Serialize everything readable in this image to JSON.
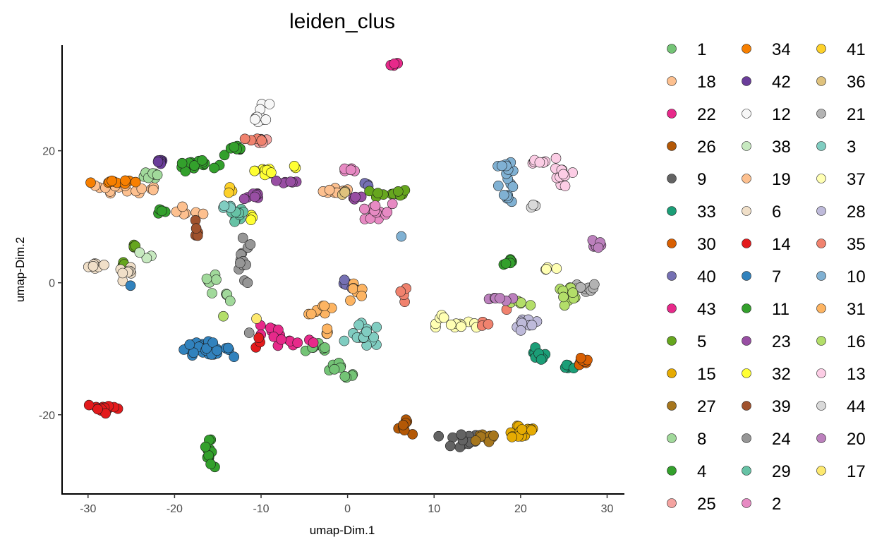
{
  "chart_data": {
    "type": "scatter",
    "title": "leiden_clus",
    "xlabel": "umap-Dim.1",
    "ylabel": "umap-Dim.2",
    "xlim": [
      -33,
      32
    ],
    "ylim": [
      -32,
      36
    ],
    "xticks": [
      -30,
      -20,
      -10,
      0,
      10,
      20,
      30
    ],
    "yticks": [
      -20,
      0,
      20
    ],
    "grid": false,
    "legend_position": "right",
    "legend_columns": 3,
    "point_stroke": "#1a1a1a",
    "clusters": [
      {
        "name": "1",
        "color": "#74c476",
        "blobs": [
          [
            -3,
            -10,
            1.5,
            1.0,
            8
          ],
          [
            -1.5,
            -12.5,
            1.3,
            0.9,
            6
          ],
          [
            0,
            -14.5,
            0.8,
            0.8,
            4
          ]
        ]
      },
      {
        "name": "18",
        "color": "#fdc08f",
        "blobs": [
          [
            -27,
            14.5,
            2.2,
            0.6,
            10
          ],
          [
            -23,
            14,
            1.5,
            0.5,
            6
          ],
          [
            -18,
            10.8,
            1.5,
            0.8,
            6
          ]
        ]
      },
      {
        "name": "22",
        "color": "#e7298a",
        "blobs": [
          [
            5.4,
            33,
            0.4,
            0.3,
            5
          ]
        ]
      },
      {
        "name": "26",
        "color": "#b35806",
        "blobs": [
          [
            7,
            -21.5,
            1.2,
            1.2,
            8
          ]
        ]
      },
      {
        "name": "9",
        "color": "#636363",
        "blobs": [
          [
            13,
            -24,
            2.0,
            1.0,
            14
          ]
        ]
      },
      {
        "name": "33",
        "color": "#1b9e77",
        "blobs": [
          [
            22,
            -11,
            0.8,
            0.8,
            8
          ],
          [
            25.5,
            -12.8,
            0.5,
            0.4,
            5
          ]
        ]
      },
      {
        "name": "30",
        "color": "#d95f02",
        "blobs": [
          [
            27,
            -12,
            0.8,
            0.6,
            10
          ]
        ]
      },
      {
        "name": "40",
        "color": "#7570b3",
        "blobs": [
          [
            0,
            -0.5,
            0.8,
            0.8,
            5
          ],
          [
            2.5,
            15,
            0.5,
            0.5,
            3
          ]
        ]
      },
      {
        "name": "43",
        "color": "#e7298a",
        "blobs": [
          [
            -9,
            -7.5,
            1.5,
            0.8,
            8
          ],
          [
            -6,
            -9,
            1.8,
            0.6,
            8
          ]
        ]
      },
      {
        "name": "5",
        "color": "#66a61e",
        "blobs": [
          [
            5,
            13.5,
            1.8,
            0.6,
            14
          ],
          [
            -24.8,
            5.8,
            0.4,
            0.6,
            4
          ],
          [
            -26,
            3,
            0.4,
            0.3,
            3
          ]
        ]
      },
      {
        "name": "15",
        "color": "#e6ab02",
        "blobs": [
          [
            20,
            -22.5,
            1.8,
            1.2,
            14
          ]
        ]
      },
      {
        "name": "27",
        "color": "#a6761d",
        "blobs": [
          [
            16.5,
            -23.5,
            2.0,
            0.8,
            10
          ]
        ]
      },
      {
        "name": "8",
        "color": "#a1d99b",
        "blobs": [
          [
            -22.5,
            16.5,
            0.8,
            0.8,
            8
          ],
          [
            -16,
            0.5,
            0.8,
            0.8,
            6
          ],
          [
            -14,
            -2,
            0.8,
            0.6,
            5
          ]
        ]
      },
      {
        "name": "4",
        "color": "#33a02c",
        "blobs": [
          [
            -17.5,
            18,
            2.0,
            0.8,
            16
          ],
          [
            -16,
            -26,
            0.4,
            1.6,
            12
          ],
          [
            -21.5,
            11,
            0.4,
            1.0,
            5
          ]
        ]
      },
      {
        "name": "25",
        "color": "#f4a3a0",
        "blobs": [
          [
            -10,
            21.5,
            1.0,
            0.5,
            5
          ]
        ]
      },
      {
        "name": "34",
        "color": "#f77f00",
        "blobs": [
          [
            -27.5,
            15.3,
            1.8,
            0.3,
            10
          ]
        ]
      },
      {
        "name": "42",
        "color": "#6a3d9a",
        "blobs": [
          [
            -21.5,
            18.3,
            0.8,
            0.5,
            6
          ]
        ]
      },
      {
        "name": "12",
        "color": "#f7f7f7",
        "blobs": [
          [
            -10,
            25.5,
            0.8,
            1.5,
            10
          ]
        ]
      },
      {
        "name": "38",
        "color": "#c7e9c0",
        "blobs": [
          [
            -23,
            4.5,
            0.6,
            0.6,
            3
          ]
        ]
      },
      {
        "name": "19",
        "color": "#fdc08f",
        "blobs": [
          [
            -1.5,
            14,
            1.5,
            0.6,
            8
          ]
        ]
      },
      {
        "name": "6",
        "color": "#f0dfc8",
        "blobs": [
          [
            -29,
            2.5,
            0.8,
            0.4,
            8
          ],
          [
            -25.5,
            1.5,
            0.8,
            0.6,
            8
          ]
        ]
      },
      {
        "name": "14",
        "color": "#e31a1c",
        "blobs": [
          [
            -28,
            -19,
            1.8,
            0.6,
            16
          ],
          [
            -10.5,
            -9,
            0.4,
            0.5,
            3
          ]
        ]
      },
      {
        "name": "7",
        "color": "#3182bd",
        "blobs": [
          [
            -16.5,
            -10,
            2.5,
            0.8,
            30
          ],
          [
            -25,
            -0.5,
            0.2,
            0.2,
            1
          ]
        ]
      },
      {
        "name": "11",
        "color": "#33a02c",
        "blobs": [
          [
            -13,
            20,
            1.5,
            0.6,
            8
          ],
          [
            19,
            3.2,
            0.8,
            0.4,
            6
          ]
        ]
      },
      {
        "name": "23",
        "color": "#984ea3",
        "blobs": [
          [
            -11,
            13,
            1.0,
            0.8,
            8
          ],
          [
            -7,
            15.3,
            1.5,
            0.3,
            6
          ],
          [
            1,
            13,
            0.8,
            0.5,
            4
          ]
        ]
      },
      {
        "name": "32",
        "color": "#ffff33",
        "blobs": [
          [
            -9.5,
            17,
            1.0,
            1.0,
            10
          ],
          [
            -11,
            10,
            0.3,
            0.8,
            3
          ],
          [
            -6,
            17.5,
            0.3,
            0.3,
            2
          ]
        ]
      },
      {
        "name": "39",
        "color": "#a0522d",
        "blobs": [
          [
            -17.5,
            7.5,
            0.3,
            1.0,
            5
          ]
        ]
      },
      {
        "name": "24",
        "color": "#969696",
        "blobs": [
          [
            -12,
            3,
            0.8,
            3.0,
            14
          ],
          [
            -11.5,
            -7.5,
            0.2,
            0.2,
            1
          ]
        ]
      },
      {
        "name": "29",
        "color": "#66c2a5",
        "blobs": [
          [
            -13,
            10,
            1.0,
            1.5,
            12
          ]
        ]
      },
      {
        "name": "41",
        "color": "#fdd12a",
        "blobs": [
          [
            -13.5,
            14,
            0.4,
            0.4,
            3
          ]
        ]
      },
      {
        "name": "36",
        "color": "#dfc27d",
        "blobs": [
          [
            -0.5,
            13.5,
            0.5,
            0.5,
            3
          ]
        ]
      },
      {
        "name": "21",
        "color": "#b3b3b3",
        "blobs": [
          [
            27.5,
            -1,
            1.2,
            0.8,
            10
          ]
        ]
      },
      {
        "name": "3",
        "color": "#80cdc1",
        "blobs": [
          [
            2,
            -8,
            1.5,
            1.5,
            16
          ],
          [
            -14,
            11,
            0.8,
            0.8,
            4
          ]
        ]
      },
      {
        "name": "37",
        "color": "#ffffb3",
        "blobs": [
          [
            13.5,
            -6.5,
            2.5,
            0.4,
            10
          ],
          [
            11,
            -5,
            0.6,
            0.8,
            4
          ],
          [
            23,
            2,
            0.8,
            0.4,
            4
          ]
        ]
      },
      {
        "name": "28",
        "color": "#bebada",
        "blobs": [
          [
            21,
            -6,
            1.5,
            1.2,
            10
          ]
        ]
      },
      {
        "name": "35",
        "color": "#f0826e",
        "blobs": [
          [
            -10.5,
            21.5,
            0.8,
            0.5,
            4
          ],
          [
            6.5,
            -2,
            0.4,
            1.0,
            4
          ],
          [
            15.8,
            -6,
            0.5,
            0.6,
            3
          ],
          [
            18.5,
            -4,
            0.2,
            0.2,
            1
          ]
        ]
      },
      {
        "name": "10",
        "color": "#80b1d3",
        "blobs": [
          [
            18.5,
            15,
            0.8,
            2.5,
            14
          ],
          [
            18.5,
            17.8,
            1.0,
            0.3,
            6
          ],
          [
            6.3,
            7,
            0.2,
            0.2,
            1
          ]
        ]
      },
      {
        "name": "31",
        "color": "#fdb462",
        "blobs": [
          [
            -3,
            -4,
            1.5,
            0.6,
            8
          ],
          [
            1,
            -1.5,
            0.8,
            1.5,
            8
          ],
          [
            -2.5,
            -7.5,
            0.5,
            0.8,
            4
          ]
        ]
      },
      {
        "name": "16",
        "color": "#b3de69",
        "blobs": [
          [
            25.5,
            -1.5,
            1.2,
            0.8,
            12
          ],
          [
            20,
            -3,
            0.8,
            0.4,
            5
          ],
          [
            -14.5,
            -5,
            0.2,
            0.2,
            1
          ]
        ]
      },
      {
        "name": "13",
        "color": "#fccde5",
        "blobs": [
          [
            24.5,
            15.5,
            0.8,
            2.5,
            12
          ],
          [
            22,
            18.3,
            1.2,
            0.3,
            6
          ]
        ]
      },
      {
        "name": "44",
        "color": "#d9d9d9",
        "blobs": [
          [
            21.5,
            11.5,
            0.6,
            0.3,
            3
          ]
        ]
      },
      {
        "name": "20",
        "color": "#bc80bd",
        "blobs": [
          [
            28.8,
            6,
            0.5,
            0.5,
            8
          ],
          [
            17,
            -2.5,
            1.5,
            0.5,
            6
          ]
        ]
      },
      {
        "name": "17",
        "color": "#fde96f",
        "blobs": [
          [
            -10.5,
            -5.5,
            0.2,
            0.2,
            1
          ]
        ]
      },
      {
        "name": "2",
        "color": "#e78ac3",
        "blobs": [
          [
            3,
            10.5,
            1.8,
            1.2,
            16
          ],
          [
            0,
            17,
            1.5,
            0.3,
            5
          ]
        ]
      }
    ]
  },
  "legend": {
    "columns": [
      [
        "1",
        "18",
        "22",
        "26",
        "9",
        "33",
        "30",
        "40",
        "43",
        "5",
        "15",
        "27",
        "8",
        "4",
        "25"
      ],
      [
        "34",
        "42",
        "12",
        "38",
        "19",
        "6",
        "14",
        "7",
        "11",
        "23",
        "32",
        "39",
        "24",
        "29",
        "2"
      ],
      [
        "41",
        "36",
        "21",
        "3",
        "37",
        "28",
        "35",
        "10",
        "31",
        "16",
        "13",
        "44",
        "20",
        "17"
      ]
    ]
  }
}
